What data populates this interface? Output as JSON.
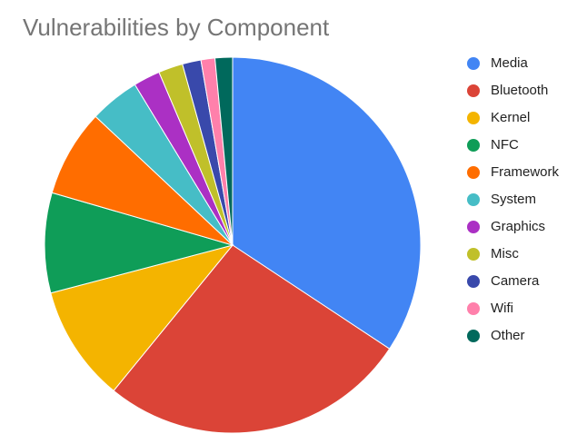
{
  "chart_data": {
    "type": "pie",
    "title": "Vulnerabilities by Component",
    "categories": [
      "Media",
      "Bluetooth",
      "Kernel",
      "NFC",
      "Framework",
      "System",
      "Graphics",
      "Misc",
      "Camera",
      "Wifi",
      "Other"
    ],
    "values": [
      34.3,
      26.6,
      10,
      8.6,
      7.5,
      4.3,
      2.3,
      2.1,
      1.6,
      1.2,
      1.5
    ],
    "colors": [
      "#4285f4",
      "#db4437",
      "#f4b400",
      "#0f9d58",
      "#ff6d00",
      "#46bdc6",
      "#ab30c4",
      "#c0c02a",
      "#3949ab",
      "#ff80ab",
      "#00695c"
    ],
    "legend": "right"
  }
}
